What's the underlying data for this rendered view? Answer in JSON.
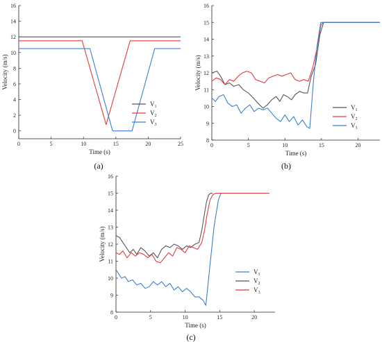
{
  "chart_data": [
    {
      "panel": "(a)",
      "type": "line",
      "xlabel": "Time (s)",
      "ylabel": "Velocity (m/s)",
      "xlim": [
        0,
        25
      ],
      "ylim": [
        -1,
        16
      ],
      "xticks": [
        0,
        5,
        10,
        15,
        20,
        25
      ],
      "yticks": [
        0,
        2,
        4,
        6,
        8,
        10,
        12,
        14,
        16
      ],
      "legend": "right",
      "series": [
        {
          "name": "V",
          "sub": "1",
          "color": "#555555",
          "x": [
            0,
            25
          ],
          "y": [
            12,
            12
          ]
        },
        {
          "name": "V",
          "sub": "2",
          "color": "#e8383d",
          "x": [
            0,
            9.8,
            13.5,
            17.2,
            25
          ],
          "y": [
            11.5,
            11.5,
            0.8,
            11.5,
            11.5
          ]
        },
        {
          "name": "V",
          "sub": "3",
          "color": "#3a7fd5",
          "x": [
            0,
            11,
            14.5,
            17.5,
            21,
            25
          ],
          "y": [
            10.5,
            10.5,
            0,
            0,
            10.5,
            10.5
          ]
        }
      ]
    },
    {
      "panel": "(b)",
      "type": "line",
      "xlabel": "Time (s)",
      "ylabel": "Velocity (m/s)",
      "xlim": [
        0,
        23
      ],
      "ylim": [
        8,
        16
      ],
      "xticks": [
        0,
        5,
        10,
        15,
        20
      ],
      "yticks": [
        8,
        9,
        10,
        11,
        12,
        13,
        14,
        15,
        16
      ],
      "legend": "bottom-right",
      "series": [
        {
          "name": "V",
          "sub": "1",
          "color": "#555555",
          "x": [
            0,
            0.7,
            1.2,
            1.8,
            2.4,
            3,
            3.7,
            4.3,
            5,
            5.7,
            6.3,
            7,
            7.6,
            8.2,
            8.8,
            9.3,
            9.8,
            10.3,
            10.9,
            11.4,
            12,
            12.6,
            13.1,
            13.6,
            14.2,
            14.8,
            15.3,
            23
          ],
          "y": [
            12,
            12.1,
            11.8,
            11.3,
            11.4,
            11.2,
            11.3,
            11,
            10.8,
            10.5,
            10.2,
            9.9,
            10.1,
            10.4,
            10.6,
            10.3,
            10.7,
            10.6,
            10.4,
            10.7,
            10.9,
            10.8,
            10.8,
            11.8,
            12.5,
            14.3,
            15,
            15
          ]
        },
        {
          "name": "V",
          "sub": "2",
          "color": "#e8383d",
          "x": [
            0,
            0.6,
            1.2,
            1.8,
            2.4,
            3,
            3.6,
            4.2,
            4.8,
            5.4,
            6,
            6.6,
            7.2,
            7.8,
            8.4,
            9,
            9.6,
            10.2,
            10.8,
            11.4,
            12,
            12.6,
            13.2,
            13.8,
            14.4,
            14.9,
            15.2,
            23
          ],
          "y": [
            11.5,
            11.7,
            11.6,
            11.3,
            11.6,
            11.5,
            11.8,
            12,
            12.1,
            12,
            11.6,
            11.5,
            11.4,
            11.7,
            11.8,
            11.9,
            11.8,
            11.9,
            12,
            11.6,
            11.5,
            11.6,
            11.5,
            12.3,
            13.5,
            14.8,
            15,
            15
          ]
        },
        {
          "name": "V",
          "sub": "3",
          "color": "#3a7fd5",
          "x": [
            0,
            0.5,
            1,
            1.6,
            2.2,
            2.8,
            3.4,
            4,
            4.6,
            5.2,
            5.8,
            6.4,
            7,
            7.6,
            8.2,
            8.8,
            9.4,
            10,
            10.6,
            11.2,
            11.8,
            12.4,
            13,
            13.4,
            13.9,
            14.4,
            14.9,
            23
          ],
          "y": [
            10.5,
            10.3,
            10.6,
            10.7,
            10.2,
            10,
            10.1,
            9.6,
            9.9,
            10.1,
            9.7,
            9.9,
            9.8,
            9.9,
            9.6,
            9.3,
            9.1,
            9.5,
            9.1,
            9.4,
            8.9,
            9.2,
            8.8,
            8.7,
            11.5,
            13.6,
            15,
            15
          ]
        }
      ]
    },
    {
      "panel": "(c)",
      "type": "line",
      "xlabel": "Time (s)",
      "ylabel": "Velocity (m/s)",
      "xlim": [
        0,
        23
      ],
      "ylim": [
        8,
        16
      ],
      "xticks": [
        0,
        5,
        10,
        15,
        20
      ],
      "yticks": [
        8,
        9,
        10,
        11,
        12,
        13,
        14,
        15,
        16
      ],
      "legend": "bottom-right",
      "series": [
        {
          "name": "V",
          "sub": "1",
          "color": "#3a7fd5",
          "x": [
            0,
            0.3,
            0.8,
            1.3,
            1.8,
            2.4,
            3,
            3.6,
            4.2,
            4.8,
            5.4,
            6,
            6.6,
            7.2,
            7.8,
            8.4,
            9,
            9.6,
            10.2,
            10.8,
            11.4,
            12,
            12.6,
            13,
            13.6,
            14.2,
            14.8,
            15.2
          ],
          "y": [
            10.5,
            10.3,
            10,
            10.1,
            9.8,
            9.9,
            9.6,
            9.7,
            9.4,
            9.5,
            9.8,
            9.6,
            9.8,
            9.5,
            9.7,
            9.3,
            9.5,
            9.2,
            9.4,
            9.2,
            8.9,
            8.9,
            8.7,
            8.4,
            10.8,
            13.1,
            14.6,
            15
          ]
        },
        {
          "name": "V",
          "sub": "2",
          "color": "#555555",
          "x": [
            0,
            0.5,
            1,
            1.5,
            2,
            2.5,
            3,
            3.6,
            4.2,
            4.8,
            5.4,
            6,
            6.6,
            7.2,
            7.8,
            8.4,
            9,
            9.6,
            10.2,
            10.8,
            11.4,
            12,
            12.4,
            12.8,
            13.1,
            13.4,
            13.7,
            14
          ],
          "y": [
            12.5,
            12.4,
            12.1,
            11.8,
            11.5,
            11.7,
            11.4,
            11.8,
            11.6,
            11.3,
            11.5,
            11.2,
            11.7,
            11.9,
            11.8,
            12,
            11.9,
            11.7,
            11.9,
            11.8,
            12,
            12.1,
            12.8,
            13.8,
            14.5,
            14.9,
            15,
            15
          ]
        },
        {
          "name": "V",
          "sub": "3",
          "color": "#e8383d",
          "x": [
            0,
            0.5,
            1,
            1.6,
            2.2,
            2.8,
            3.4,
            4,
            4.6,
            5.2,
            5.8,
            6.4,
            7,
            7.6,
            8.2,
            8.8,
            9.4,
            10,
            10.6,
            11.2,
            11.8,
            12.4,
            12.8,
            13.2,
            13.6,
            14,
            14.4,
            22.2
          ],
          "y": [
            11.5,
            11.4,
            11.6,
            11.2,
            11.5,
            11.3,
            11.5,
            11.4,
            11.2,
            11.4,
            11,
            10.9,
            11.2,
            11.5,
            11.3,
            11.8,
            11.7,
            11.5,
            11.9,
            11.8,
            11.7,
            12.1,
            12.8,
            13.8,
            14.6,
            14.9,
            15,
            15
          ]
        }
      ]
    }
  ]
}
